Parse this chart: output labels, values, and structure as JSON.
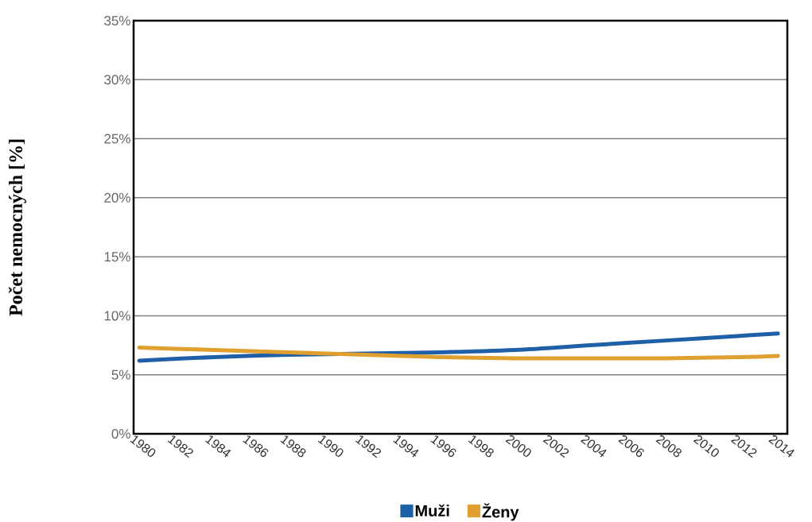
{
  "chart_data": {
    "type": "line",
    "ylabel": "Počet nemocných [%]",
    "x": [
      1980,
      1984,
      1988,
      1992,
      1996,
      2000,
      2004,
      2008,
      2012,
      2014
    ],
    "series": [
      {
        "name": "Muži",
        "color": "#1f5fa8",
        "values": [
          6.2,
          6.5,
          6.7,
          6.8,
          6.9,
          7.1,
          7.5,
          7.9,
          8.3,
          8.5
        ]
      },
      {
        "name": "Ženy",
        "color": "#e0a030",
        "values": [
          7.3,
          7.1,
          6.9,
          6.7,
          6.5,
          6.4,
          6.4,
          6.4,
          6.5,
          6.6
        ]
      }
    ],
    "xlim": [
      1979.7,
      2014.5
    ],
    "xticks": [
      1980,
      1982,
      1984,
      1986,
      1988,
      1990,
      1992,
      1994,
      1996,
      1998,
      2000,
      2002,
      2004,
      2006,
      2008,
      2010,
      2012,
      2014
    ],
    "ylim": [
      0,
      35
    ],
    "yticks": [
      {
        "value": 0,
        "label": "0%"
      },
      {
        "value": 5,
        "label": "5%"
      },
      {
        "value": 10,
        "label": "10%"
      },
      {
        "value": 15,
        "label": "15%"
      },
      {
        "value": 20,
        "label": "20%"
      },
      {
        "value": 25,
        "label": "25%"
      },
      {
        "value": 30,
        "label": "30%"
      },
      {
        "value": 35,
        "label": "35%"
      }
    ],
    "grid": "y",
    "legend": "bottom",
    "marker": "none",
    "line_style": "solid"
  }
}
